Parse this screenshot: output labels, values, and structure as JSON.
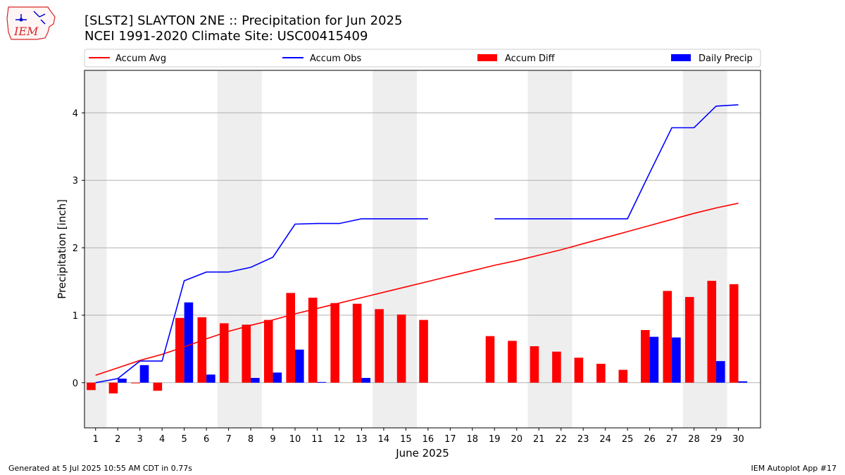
{
  "header": {
    "logo_text": "IEM",
    "title_line1": "[SLST2] SLAYTON 2NE :: Precipitation for Jun 2025",
    "title_line2": "NCEI 1991-2020 Climate Site: USC00415409"
  },
  "footer": {
    "left": "Generated at 5 Jul 2025 10:55 AM CDT in 0.77s",
    "right": "IEM Autoplot App #17"
  },
  "colors": {
    "accum_avg": "#ff0000",
    "accum_obs": "#0000ff",
    "accum_diff": "#ff0000",
    "daily_precip": "#0000ff",
    "weekend_shade": "#eeeeee",
    "grid": "#b0b0b0"
  },
  "chart_data": {
    "type": "bar",
    "xlabel": "June 2025",
    "ylabel": "Precipitation [inch]",
    "ylim": [
      -0.67,
      4.63
    ],
    "yticks": [
      0,
      1,
      2,
      3,
      4
    ],
    "grid": "horizontal",
    "legend_position": "top",
    "days": [
      1,
      2,
      3,
      4,
      5,
      6,
      7,
      8,
      9,
      10,
      11,
      12,
      13,
      14,
      15,
      16,
      17,
      18,
      19,
      20,
      21,
      22,
      23,
      24,
      25,
      26,
      27,
      28,
      29,
      30
    ],
    "weekend_days": [
      1,
      7,
      8,
      14,
      15,
      21,
      22,
      28,
      29
    ],
    "series": [
      {
        "name": "Accum Avg",
        "kind": "line",
        "values": [
          0.11,
          0.22,
          0.33,
          0.42,
          0.53,
          0.65,
          0.76,
          0.85,
          0.93,
          1.02,
          1.1,
          1.18,
          1.26,
          1.34,
          1.42,
          1.5,
          1.58,
          1.66,
          1.74,
          1.81,
          1.89,
          1.97,
          2.06,
          2.15,
          2.24,
          2.33,
          2.42,
          2.51,
          2.59,
          2.66
        ]
      },
      {
        "name": "Accum Obs",
        "kind": "line",
        "values": [
          0.0,
          0.06,
          0.32,
          0.32,
          1.51,
          1.64,
          1.64,
          1.71,
          1.86,
          2.35,
          2.36,
          2.36,
          2.43,
          2.43,
          2.43,
          2.43,
          null,
          null,
          2.43,
          2.43,
          2.43,
          2.43,
          2.43,
          2.43,
          2.43,
          3.11,
          3.78,
          3.78,
          4.1,
          4.12
        ]
      },
      {
        "name": "Accum Diff",
        "kind": "bar",
        "values": [
          -0.11,
          -0.16,
          -0.01,
          -0.12,
          0.96,
          0.97,
          0.88,
          0.86,
          0.93,
          1.33,
          1.26,
          1.18,
          1.17,
          1.09,
          1.01,
          0.93,
          null,
          null,
          0.69,
          0.62,
          0.54,
          0.46,
          0.37,
          0.28,
          0.19,
          0.78,
          1.36,
          1.27,
          1.51,
          1.46
        ]
      },
      {
        "name": "Daily Precip",
        "kind": "bar",
        "values": [
          0.0,
          0.06,
          0.26,
          0.0,
          1.19,
          0.12,
          0.0,
          0.07,
          0.15,
          0.49,
          0.01,
          0.0,
          0.07,
          0.0,
          0.0,
          0.0,
          null,
          null,
          0.0,
          0.0,
          0.0,
          0.0,
          0.0,
          0.0,
          0.0,
          0.68,
          0.67,
          0.0,
          0.32,
          0.02
        ]
      }
    ]
  }
}
